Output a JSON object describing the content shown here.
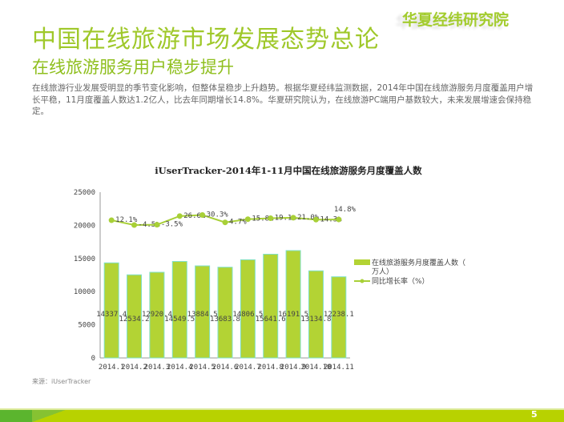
{
  "header": {
    "title": "中国在线旅游市场发展态势总论",
    "subtitle": "在线旅游服务用户稳步提升",
    "logo": "华夏经纬研究院"
  },
  "paragraph": "在线旅游行业发展受明显的季节变化影响，但整体呈稳步上升趋势。根据华夏经纬监测数据，2014年中国在线旅游服务月度覆盖用户增长平稳，11月度覆盖人数达1.2亿人，比去年同期增长14.8%。华夏研究院认为，在线旅游PC端用户基数较大，未来发展增速会保持稳定。",
  "source": "来源：iUserTracker",
  "page_number": "5",
  "colors": {
    "accent": "#9fc82a",
    "bar": "#b3d334",
    "bar_edge": "#7fe0c8",
    "line": "#a8d037",
    "band": "#b8d200"
  },
  "chart_data": {
    "type": "bar+line",
    "title": "iUserTracker-2014年1-11月中国在线旅游服务月度覆盖人数",
    "categories": [
      "2014.1",
      "2014.2",
      "2014.3",
      "2014.4",
      "2014.5",
      "2014.6",
      "2014.7",
      "2014.8",
      "2014.9",
      "2014.10",
      "2014.11"
    ],
    "ylim": [
      0,
      25000
    ],
    "yticks": [
      "0",
      "5000",
      "10000",
      "15000",
      "20000",
      "25000"
    ],
    "legend_position": "right",
    "series": [
      {
        "name": "在线旅游服务月度覆盖人数（万人）",
        "type": "bar",
        "values": [
          14337.4,
          12534.2,
          12920.4,
          14549.5,
          13884.5,
          13683.8,
          14806.5,
          15641.6,
          16191.5,
          13134.8,
          12238.1
        ]
      },
      {
        "name": "同比增长率（%）",
        "type": "line",
        "values": [
          12.1,
          -4.5,
          -3.5,
          26.6,
          30.3,
          4.7,
          15.8,
          19.1,
          21.0,
          14.3,
          14.8
        ],
        "labels": [
          "12.1%",
          "-4.5%",
          "-3.5%",
          "26.6%",
          "30.3%",
          "4.7%",
          "15.8%",
          "19.1%",
          "21.0%",
          "14.3%",
          "14.8%"
        ]
      }
    ]
  }
}
